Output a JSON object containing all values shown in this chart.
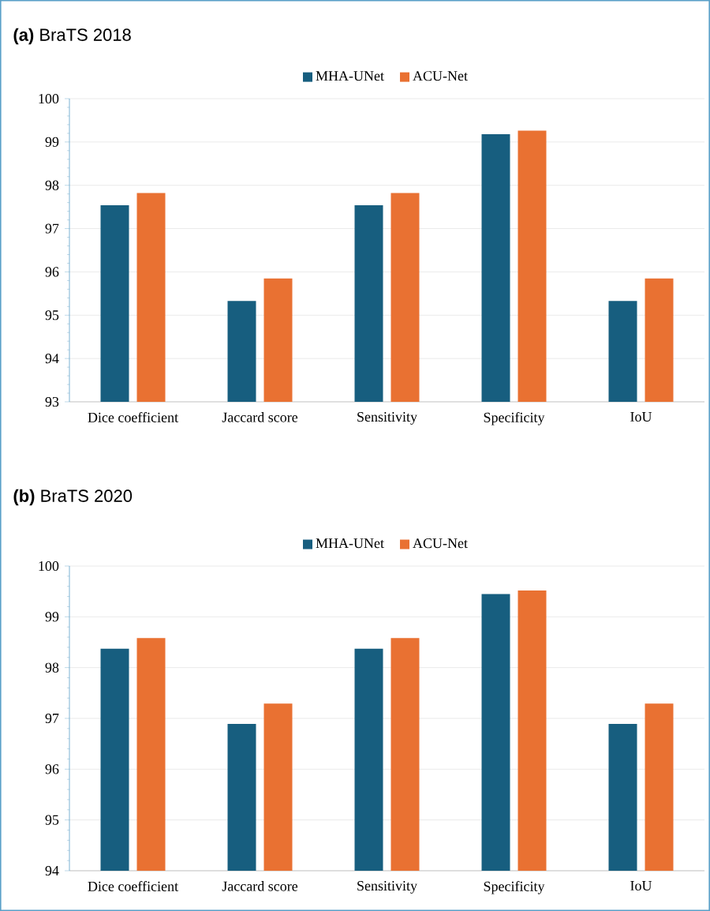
{
  "chart_data": [
    {
      "type": "bar",
      "title": "**(a)** BraTS 2018",
      "categories": [
        "Dice coefficient",
        "Jaccard score",
        "Sensitivity",
        "Specificity",
        "IoU"
      ],
      "series": [
        {
          "name": "MHA-UNet",
          "color": "#175e7f",
          "values": [
            97.54,
            95.33,
            97.54,
            99.18,
            95.33
          ]
        },
        {
          "name": "ACU-Net",
          "color": "#e97132",
          "values": [
            97.82,
            95.85,
            97.82,
            99.26,
            95.85
          ]
        }
      ],
      "ylim": [
        93,
        100
      ],
      "yticks": [
        93,
        94,
        95,
        96,
        97,
        98,
        99,
        100
      ],
      "grid": "y",
      "legend": "top"
    },
    {
      "type": "bar",
      "title": "**(b)** BraTS 2020",
      "categories": [
        "Dice coefficient",
        "Jaccard score",
        "Sensitivity",
        "Specificity",
        "IoU"
      ],
      "series": [
        {
          "name": "MHA-UNet",
          "color": "#175e7f",
          "values": [
            98.37,
            96.89,
            98.37,
            99.45,
            96.89
          ]
        },
        {
          "name": "ACU-Net",
          "color": "#e97132",
          "values": [
            98.58,
            97.29,
            98.58,
            99.52,
            97.29
          ]
        }
      ],
      "ylim": [
        94,
        100
      ],
      "yticks": [
        94,
        95,
        96,
        97,
        98,
        99,
        100
      ],
      "grid": "y",
      "legend": "top"
    }
  ]
}
